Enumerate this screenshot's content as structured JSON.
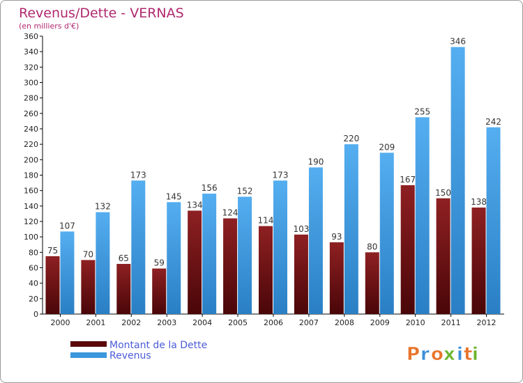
{
  "chart_data": {
    "type": "bar",
    "title": "Revenus/Dette - VERNAS",
    "subtitle": "(en milliers d'€)",
    "categories": [
      "2000",
      "2001",
      "2002",
      "2003",
      "2004",
      "2005",
      "2006",
      "2007",
      "2008",
      "2009",
      "2010",
      "2011",
      "2012"
    ],
    "series": [
      {
        "name": "Montant de la Dette",
        "values": [
          75,
          70,
          65,
          59,
          134,
          124,
          114,
          103,
          93,
          80,
          167,
          150,
          138
        ],
        "color": "#7a1416"
      },
      {
        "name": "Revenus",
        "values": [
          107,
          132,
          173,
          145,
          156,
          152,
          173,
          190,
          220,
          209,
          255,
          346,
          242
        ],
        "color": "#3a97dc"
      }
    ],
    "ylim": [
      0,
      360
    ],
    "yticks": [
      0,
      20,
      40,
      60,
      80,
      100,
      120,
      140,
      160,
      180,
      200,
      220,
      240,
      260,
      280,
      300,
      320,
      340,
      360
    ],
    "grid": false,
    "legend": "bottom-left",
    "title_color": "#b0286e",
    "legend_text_color": "#4a5bd8"
  },
  "logo": {
    "letters": [
      "P",
      "r",
      "o",
      "x",
      "i",
      "t",
      "i"
    ],
    "colors": [
      "#e8742b",
      "#3d8fd8",
      "#e8742b",
      "#6bb52e",
      "#3d8fd8",
      "#e8742b",
      "#6bb52e"
    ]
  }
}
